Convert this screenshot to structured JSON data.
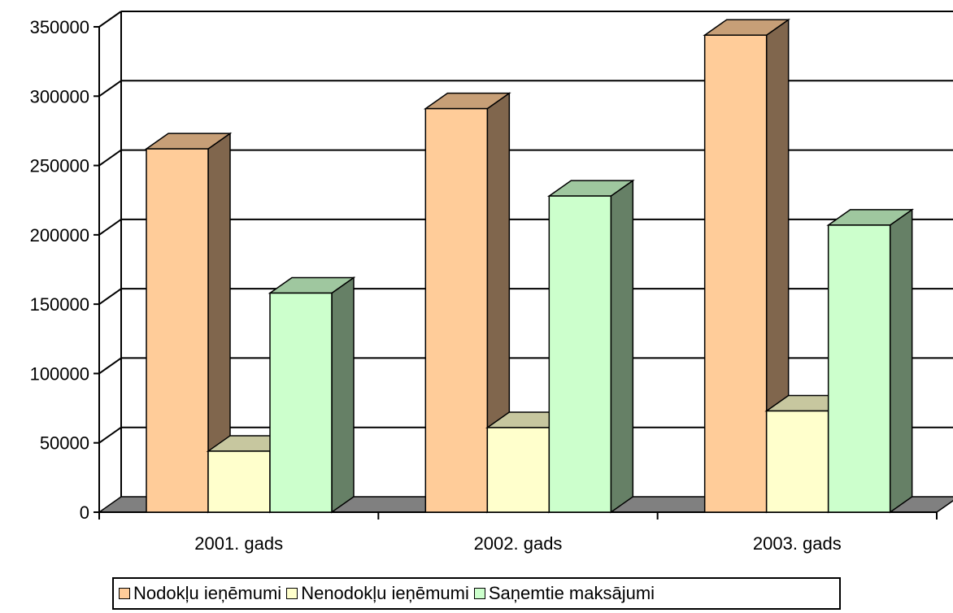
{
  "chart_data": {
    "type": "bar",
    "title": "",
    "xlabel": "",
    "ylabel": "",
    "categories": [
      "2001. gads",
      "2002. gads",
      "2003. gads"
    ],
    "series": [
      {
        "name": "Nodokļu ieņēmumi",
        "values": [
          262000,
          291000,
          344000
        ],
        "color": "#FFCC99"
      },
      {
        "name": "Nenodokļu ieņēmumi",
        "values": [
          44000,
          61000,
          73000
        ],
        "color": "#FFFFCC"
      },
      {
        "name": "Saņemtie maksājumi",
        "values": [
          158000,
          228000,
          207000
        ],
        "color": "#CCFFCC"
      }
    ],
    "ylim": [
      0,
      350000
    ],
    "yticks": [
      0,
      50000,
      100000,
      150000,
      200000,
      250000,
      300000,
      350000
    ],
    "grid": true,
    "legend_position": "bottom",
    "floor_color": "#808080"
  }
}
